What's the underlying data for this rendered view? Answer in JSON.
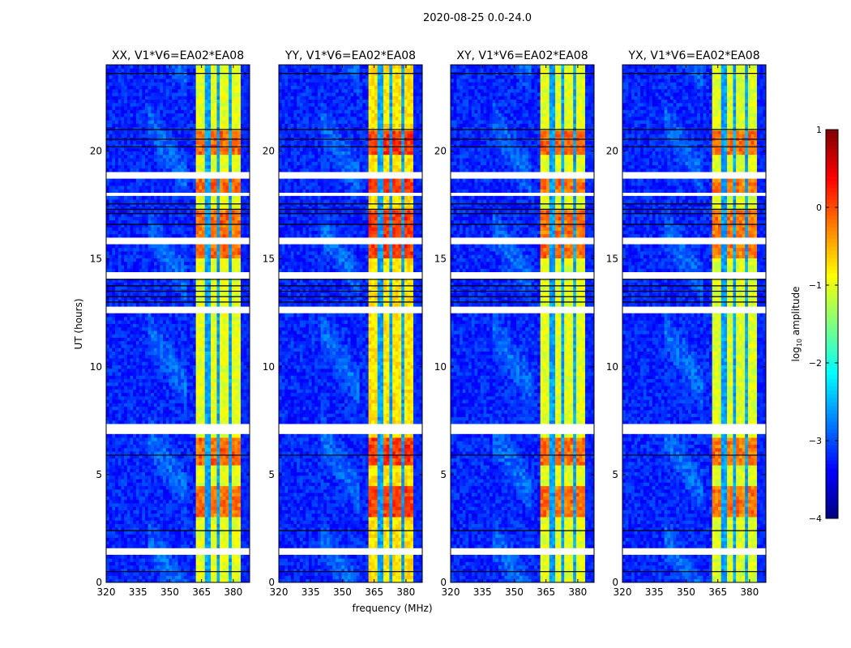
{
  "chart_data": {
    "type": "heatmap",
    "suptitle": "2020-08-25 0.0-24.0",
    "xlabel": "frequency (MHz)",
    "ylabel": "UT (hours)",
    "xlim": [
      320,
      387.7
    ],
    "ylim": [
      0,
      24
    ],
    "xticks": [
      "320",
      "335",
      "350",
      "365",
      "380"
    ],
    "xtick_values": [
      320,
      335,
      350,
      365,
      380
    ],
    "yticks": [
      "0",
      "5",
      "10",
      "15",
      "20"
    ],
    "ytick_values": [
      0,
      5,
      10,
      15,
      20
    ],
    "panels": [
      {
        "title": "XX, V1*V6=EA02*EA08",
        "band_boost": 0.0
      },
      {
        "title": "YY, V1*V6=EA02*EA08",
        "band_boost": 0.25
      },
      {
        "title": "XY, V1*V6=EA02*EA08",
        "band_boost": 0.0
      },
      {
        "title": "YX, V1*V6=EA02*EA08",
        "band_boost": -0.05
      }
    ],
    "model": {
      "background_log10": -3.2,
      "rfi_band_mhz": [
        363,
        384
      ],
      "rfi_band_log10": -1.0,
      "band_gaps_mhz": [
        368,
        373.5,
        378.5
      ],
      "hot_intervals_hours": [
        [
          18.0,
          18.8
        ],
        [
          3.0,
          4.5
        ],
        [
          5.5,
          6.8
        ],
        [
          15.0,
          17.3
        ],
        [
          19.8,
          21.0
        ]
      ],
      "flagged_intervals_hours": [
        [
          1.25,
          1.6
        ],
        [
          6.95,
          7.3
        ],
        [
          12.55,
          12.85
        ],
        [
          14.15,
          14.35
        ],
        [
          15.75,
          15.95
        ],
        [
          18.8,
          19.05
        ],
        [
          17.9,
          18.1
        ]
      ],
      "black_lines_hours": [
        0.5,
        2.4,
        5.9,
        13.0,
        13.25,
        13.5,
        13.75,
        14.05,
        16.6,
        17.1,
        17.3,
        17.55,
        20.2,
        20.55,
        21.0,
        23.6
      ]
    },
    "colorbar": {
      "label": "log10 amplitude",
      "label_main": "log",
      "label_sub": "10",
      "label_tail": " amplitude",
      "range": [
        -4,
        1
      ],
      "ticks": [
        "1",
        "0",
        "−1",
        "−2",
        "−3",
        "−4"
      ],
      "tick_values": [
        1,
        0,
        -1,
        -2,
        -3,
        -4
      ],
      "colormap": "jet"
    }
  }
}
